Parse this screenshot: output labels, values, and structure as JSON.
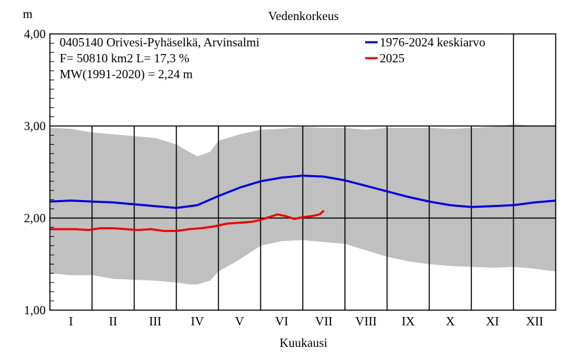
{
  "chart_data": {
    "type": "line",
    "title": "Vedenkorkeus",
    "ylabel": "m",
    "xlabel": "Kuukausi",
    "ylim": [
      1.0,
      4.0
    ],
    "yticks": [
      "1,00",
      "2,00",
      "3,00",
      "4,00"
    ],
    "ytick_values": [
      1.0,
      2.0,
      3.0,
      4.0
    ],
    "months": [
      "I",
      "II",
      "III",
      "IV",
      "V",
      "VI",
      "VII",
      "VIII",
      "IX",
      "X",
      "XI",
      "XII"
    ],
    "info_lines": [
      "0405140 Orivesi-Pyhäselkä, Arvinsalmi",
      "F=  50810 km2 L=  17,3 %",
      "MW(1991-2020) = 2,24 m"
    ],
    "legend_placement": "top-right",
    "range_band": {
      "color": "#c0c0c0",
      "x_month": [
        0,
        0.5,
        1,
        1.5,
        2,
        2.5,
        3,
        3.3,
        3.5,
        3.8,
        4,
        4.5,
        5,
        5.5,
        6,
        6.5,
        7,
        7.5,
        8,
        8.5,
        9,
        9.5,
        10,
        10.5,
        11,
        11.5,
        12
      ],
      "upper": [
        2.98,
        2.97,
        2.93,
        2.91,
        2.89,
        2.87,
        2.8,
        2.72,
        2.67,
        2.72,
        2.84,
        2.91,
        2.96,
        2.97,
        2.99,
        2.98,
        2.98,
        2.96,
        2.98,
        2.98,
        2.98,
        2.97,
        2.98,
        2.99,
        3.02,
        3.0,
        3.01
      ],
      "lower": [
        1.4,
        1.38,
        1.38,
        1.34,
        1.33,
        1.32,
        1.3,
        1.28,
        1.28,
        1.32,
        1.42,
        1.55,
        1.7,
        1.75,
        1.76,
        1.74,
        1.72,
        1.65,
        1.58,
        1.53,
        1.5,
        1.48,
        1.47,
        1.46,
        1.47,
        1.45,
        1.42
      ]
    },
    "series": [
      {
        "name": "1976-2024 keskiarvo",
        "color": "#0000dd",
        "x_month": [
          0,
          0.5,
          1,
          1.5,
          2,
          2.5,
          3,
          3.5,
          4,
          4.5,
          5,
          5.5,
          6,
          6.5,
          7,
          7.5,
          8,
          8.5,
          9,
          9.5,
          10,
          10.5,
          11,
          11.5,
          12
        ],
        "values": [
          2.18,
          2.19,
          2.18,
          2.17,
          2.15,
          2.13,
          2.11,
          2.14,
          2.24,
          2.33,
          2.4,
          2.44,
          2.46,
          2.45,
          2.41,
          2.35,
          2.29,
          2.23,
          2.18,
          2.14,
          2.12,
          2.13,
          2.14,
          2.17,
          2.19
        ]
      },
      {
        "name": "2025",
        "color": "#ee0000",
        "x_month": [
          0,
          0.3,
          0.6,
          0.9,
          1.2,
          1.5,
          1.8,
          2.1,
          2.4,
          2.7,
          3.0,
          3.3,
          3.6,
          3.9,
          4.2,
          4.5,
          4.8,
          5.0,
          5.2,
          5.4,
          5.6,
          5.8,
          6.0,
          6.2,
          6.4,
          6.5
        ],
        "values": [
          1.88,
          1.88,
          1.88,
          1.87,
          1.89,
          1.89,
          1.88,
          1.87,
          1.88,
          1.86,
          1.86,
          1.88,
          1.89,
          1.91,
          1.94,
          1.95,
          1.96,
          1.98,
          2.01,
          2.04,
          2.02,
          1.99,
          2.01,
          2.02,
          2.04,
          2.08
        ]
      }
    ]
  }
}
